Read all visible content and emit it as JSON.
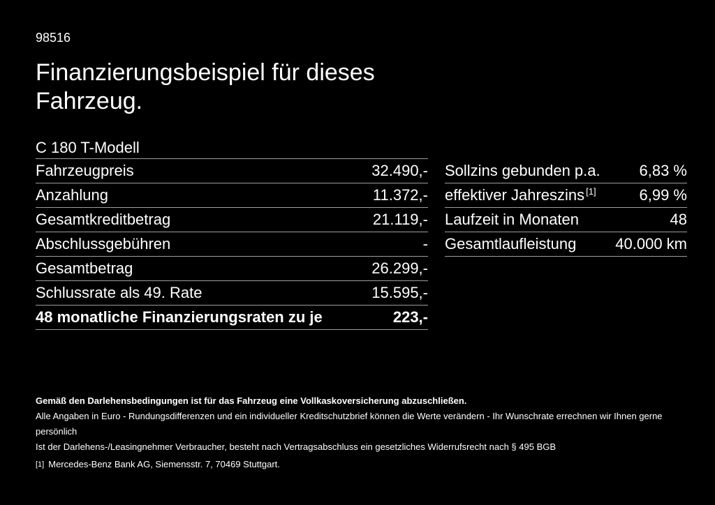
{
  "page": {
    "background": "#000000",
    "text_color": "#ffffff",
    "divider_color": "#9e9e9e"
  },
  "header": {
    "ref_number": "98516",
    "title_line1": "Finanzierungsbeispiel für dieses",
    "title_line2": "Fahrzeug.",
    "model": "C 180 T-Modell"
  },
  "finance_table": {
    "rows": [
      {
        "label": "Fahrzeugpreis",
        "value": "32.490,-"
      },
      {
        "label": "Anzahlung",
        "value": "11.372,-"
      },
      {
        "label": "Gesamtkreditbetrag",
        "value": "21.119,-"
      },
      {
        "label": "Abschlussgebühren",
        "value": "-"
      },
      {
        "label": "Gesamtbetrag",
        "value": "26.299,-"
      },
      {
        "label": "Schlussrate als 49. Rate",
        "value": "15.595,-"
      },
      {
        "label": "48 monatliche Finanzierungsraten zu je",
        "value": "223,-"
      }
    ]
  },
  "conditions_table": {
    "rows": [
      {
        "label": "Sollzins gebunden p.a.",
        "superscript": "",
        "value": "6,83 %"
      },
      {
        "label": "effektiver Jahreszins",
        "superscript": "[1]",
        "value": "6,99 %"
      },
      {
        "label": "Laufzeit in Monaten",
        "superscript": "",
        "value": "48"
      },
      {
        "label": "Gesamtlaufleistung",
        "superscript": "",
        "value": "40.000 km"
      }
    ]
  },
  "footer": {
    "bold_note": "Gemäß den Darlehensbedingungen ist für das Fahrzeug eine Vollkaskoversicherung abzuschließen.",
    "note_line2": "Alle Angaben in Euro - Rundungsdifferenzen und ein individueller Kreditschutzbrief können die Werte verändern - Ihr Wunschrate errechnen wir Ihnen gerne persönlich",
    "note_line3": "Ist der Darlehens-/Leasingnehmer Verbraucher, besteht nach Vertragsabschluss ein gesetzliches Widerrufsrecht nach § 495 BGB",
    "footnote_marker": "[1]",
    "footnote_text": "Mercedes-Benz Bank AG, Siemensstr. 7, 70469 Stuttgart."
  }
}
